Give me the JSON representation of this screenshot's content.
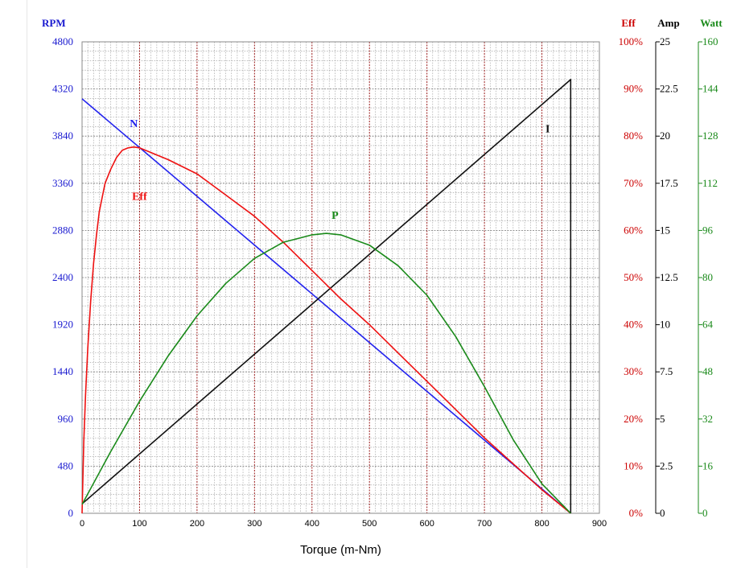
{
  "chart_data": {
    "type": "line",
    "xlabel": "Torque (m-Nm)",
    "xlim": [
      0,
      900
    ],
    "xticks": [
      0,
      100,
      200,
      300,
      400,
      500,
      600,
      700,
      800,
      900
    ],
    "axes": [
      {
        "key": "rpm",
        "label": "RPM",
        "color": "#1a1ad0",
        "range": [
          0,
          4800
        ],
        "ticks": [
          "0",
          "480",
          "960",
          "1440",
          "1920",
          "2400",
          "2880",
          "3360",
          "3840",
          "4320",
          "4800"
        ]
      },
      {
        "key": "eff",
        "label": "Eff",
        "color": "#cc0000",
        "range": [
          0,
          100
        ],
        "ticks": [
          "0%",
          "10%",
          "20%",
          "30%",
          "40%",
          "50%",
          "60%",
          "70%",
          "80%",
          "90%",
          "100%"
        ]
      },
      {
        "key": "amp",
        "label": "Amp",
        "color": "#000000",
        "range": [
          0,
          25
        ],
        "ticks": [
          "0",
          "2.5",
          "5",
          "7.5",
          "10",
          "12.5",
          "15",
          "17.5",
          "20",
          "22.5",
          "25"
        ]
      },
      {
        "key": "watt",
        "label": "Watt",
        "color": "#1a8a1a",
        "range": [
          0,
          160
        ],
        "ticks": [
          "0",
          "16",
          "32",
          "48",
          "64",
          "80",
          "96",
          "112",
          "128",
          "144",
          "160"
        ]
      }
    ],
    "series": [
      {
        "name": "N",
        "axis": "rpm",
        "color": "#2222ee",
        "points": [
          [
            0,
            4220
          ],
          [
            850,
            0
          ]
        ]
      },
      {
        "name": "I",
        "axis": "amp",
        "color": "#111111",
        "points": [
          [
            0,
            0.5
          ],
          [
            850,
            23.0
          ],
          [
            850,
            0
          ]
        ]
      },
      {
        "name": "Eff",
        "axis": "eff",
        "color": "#ee1111",
        "points": [
          [
            0,
            0
          ],
          [
            3,
            15
          ],
          [
            6,
            25
          ],
          [
            10,
            35
          ],
          [
            15,
            45
          ],
          [
            20,
            53
          ],
          [
            25,
            59
          ],
          [
            30,
            64
          ],
          [
            40,
            70
          ],
          [
            50,
            73
          ],
          [
            60,
            75.5
          ],
          [
            70,
            77
          ],
          [
            80,
            77.5
          ],
          [
            90,
            77.7
          ],
          [
            100,
            77.5
          ],
          [
            150,
            75
          ],
          [
            200,
            72
          ],
          [
            250,
            67.5
          ],
          [
            300,
            63
          ],
          [
            350,
            57.5
          ],
          [
            400,
            51.5
          ],
          [
            450,
            45.5
          ],
          [
            500,
            40
          ],
          [
            550,
            34
          ],
          [
            600,
            28
          ],
          [
            650,
            22
          ],
          [
            700,
            16
          ],
          [
            750,
            10.5
          ],
          [
            800,
            5
          ],
          [
            830,
            2
          ],
          [
            850,
            0
          ]
        ]
      },
      {
        "name": "P",
        "axis": "watt",
        "color": "#1a8a1a",
        "points": [
          [
            0,
            3
          ],
          [
            50,
            21
          ],
          [
            100,
            38
          ],
          [
            150,
            53.5
          ],
          [
            200,
            67
          ],
          [
            250,
            78
          ],
          [
            300,
            86.5
          ],
          [
            350,
            92
          ],
          [
            400,
            94.5
          ],
          [
            425,
            95
          ],
          [
            450,
            94.5
          ],
          [
            500,
            91
          ],
          [
            550,
            84
          ],
          [
            600,
            74
          ],
          [
            650,
            60
          ],
          [
            700,
            43
          ],
          [
            750,
            25
          ],
          [
            800,
            10
          ],
          [
            850,
            0
          ]
        ]
      }
    ],
    "series_labels": [
      {
        "text": "N",
        "axis": "rpm",
        "x": 90,
        "y": 3930,
        "color": "#2222ee"
      },
      {
        "text": "Eff",
        "axis": "eff",
        "x": 100,
        "y": 66.5,
        "color": "#ee1111"
      },
      {
        "text": "P",
        "axis": "watt",
        "x": 440,
        "y": 100,
        "color": "#1a8a1a"
      },
      {
        "text": "I",
        "axis": "amp",
        "x": 810,
        "y": 20.2,
        "color": "#111111"
      }
    ],
    "grid": true,
    "legend": "none"
  }
}
